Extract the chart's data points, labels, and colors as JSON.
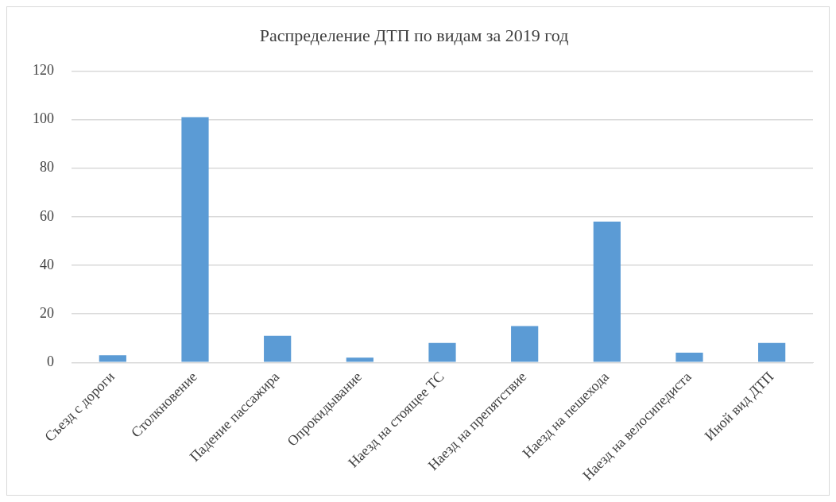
{
  "chart_data": {
    "type": "bar",
    "title": "Распределение ДТП по видам за 2019 год",
    "categories": [
      "Съезд с дороги",
      "Столкновение",
      "Падение пассажира",
      "Опрокидывание",
      "Наезд на стоящее ТС",
      "Наезд на препятствие",
      "Наезд на пешехода",
      "Наезд на велосипедиста",
      "Иной вид ДТП"
    ],
    "values": [
      3,
      101,
      11,
      2,
      8,
      15,
      58,
      4,
      8
    ],
    "color": "#5b9bd5",
    "ylim": [
      0,
      120
    ],
    "yticks": [
      0,
      20,
      40,
      60,
      80,
      100,
      120
    ],
    "grid": "y",
    "legend": false
  }
}
